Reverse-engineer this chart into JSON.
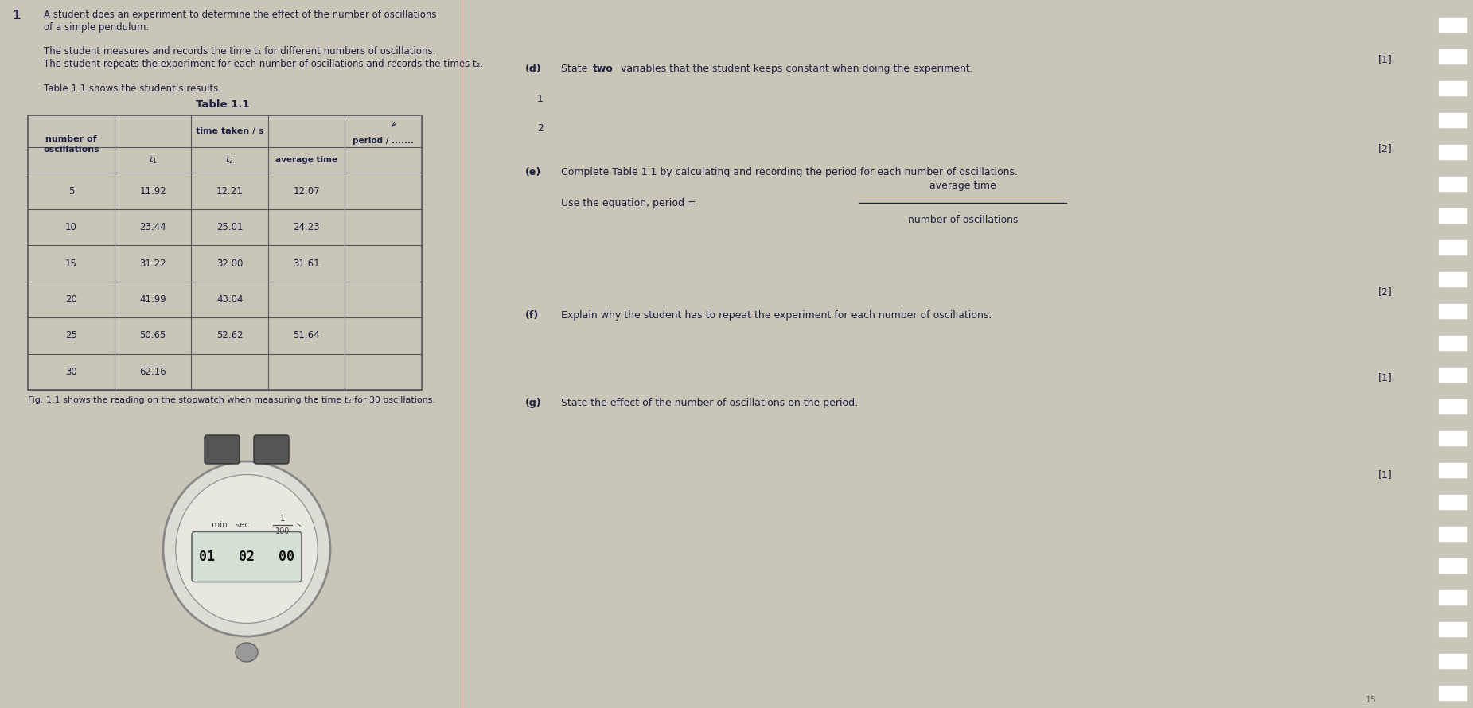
{
  "bg_color": "#c9c5b9",
  "left_bg": "#cdc9bc",
  "right_bg": "#c9c5b9",
  "margin_bg": "#1a1a1a",
  "text_color": "#1e2040",
  "table_border": "#555555",
  "dotted_color": "#aaaaaa",
  "question_number": "1",
  "intro_line1": "A student does an experiment to determine the effect of the number of oscillations",
  "intro_line2": "of a simple pendulum.",
  "para1": "The student measures and records the time t₁ for different numbers of oscillations.",
  "para2": "The student repeats the experiment for each number of oscillations and records the times t₂.",
  "table_note": "Table 1.1 shows the student’s results.",
  "table_title": "Table 1.1",
  "rows": [
    [
      5,
      "11.92",
      "12.21",
      "12.07",
      ""
    ],
    [
      10,
      "23.44",
      "25.01",
      "24.23",
      ""
    ],
    [
      15,
      "31.22",
      "32.00",
      "31.61",
      ""
    ],
    [
      20,
      "41.99",
      "43.04",
      "",
      ""
    ],
    [
      25,
      "50.65",
      "52.62",
      "51.64",
      ""
    ],
    [
      30,
      "62.16",
      "",
      "",
      ""
    ]
  ],
  "fig_text": "Fig. 1.1 shows the reading on the stopwatch when measuring the time t₂ for 30 oscillations.",
  "part_d_label": "(d)",
  "part_d_q": "State",
  "part_d_bold": "two",
  "part_d_rest": " variables that the student keeps constant when doing the experiment.",
  "part_e_label": "(e)",
  "part_e_text": "Complete Table 1.1 by calculating and recording the period for each number of oscillations.",
  "part_e_eq": "Use the equation, period =",
  "part_e_num": "average time",
  "part_e_den": "number of oscillations",
  "part_f_label": "(f)",
  "part_f_text": "Explain why the student has to repeat the experiment for each number of oscillations.",
  "part_g_label": "(g)",
  "part_g_text": "State the effect of the number of oscillations on the period.",
  "mark1": "[1]",
  "mark2": "[2]",
  "mark3": "[2]",
  "mark4": "[1]",
  "mark5": "[1]",
  "page_num": "15"
}
